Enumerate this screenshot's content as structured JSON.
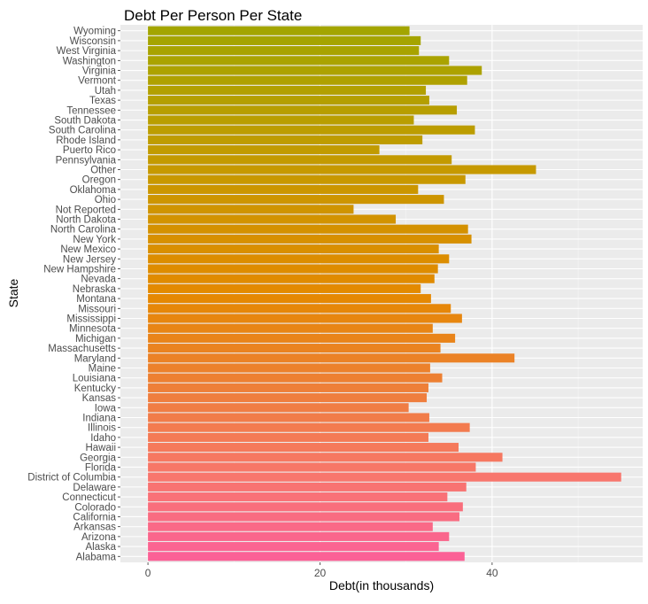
{
  "chart_data": {
    "type": "bar",
    "orientation": "horizontal",
    "title": "Debt Per Person Per State",
    "xlabel": "Debt(in thousands)",
    "ylabel": "State",
    "xlim": [
      -3.2,
      57.5
    ],
    "xticks": [
      0,
      20,
      40
    ],
    "grid": true,
    "legend": "none",
    "panel_background": "#ebebeb",
    "grid_major_color": "#ffffff",
    "color_gradient": {
      "bottom": "#f8766d",
      "middle": "#e38900",
      "top": "#a3a500",
      "bottom_pink": "#fb61d7"
    },
    "categories": [
      "Alabama",
      "Alaska",
      "Arizona",
      "Arkansas",
      "California",
      "Colorado",
      "Connecticut",
      "Delaware",
      "District of Columbia",
      "Florida",
      "Georgia",
      "Hawaii",
      "Idaho",
      "Illinois",
      "Indiana",
      "Iowa",
      "Kansas",
      "Kentucky",
      "Louisiana",
      "Maine",
      "Maryland",
      "Massachusetts",
      "Michigan",
      "Minnesota",
      "Mississippi",
      "Missouri",
      "Montana",
      "Nebraska",
      "Nevada",
      "New Hampshire",
      "New Jersey",
      "New Mexico",
      "New York",
      "North Carolina",
      "North Dakota",
      "Not Reported",
      "Ohio",
      "Oklahoma",
      "Oregon",
      "Other",
      "Pennsylvania",
      "Puerto Rico",
      "Rhode Island",
      "South Carolina",
      "South Dakota",
      "Tennessee",
      "Texas",
      "Utah",
      "Vermont",
      "Virginia",
      "Washington",
      "West Virginia",
      "Wisconsin",
      "Wyoming"
    ],
    "values": [
      36.8,
      33.8,
      35.0,
      33.1,
      36.2,
      36.6,
      34.8,
      37.0,
      55.0,
      38.1,
      41.2,
      36.1,
      32.6,
      37.4,
      32.7,
      30.3,
      32.4,
      32.6,
      34.2,
      32.8,
      42.6,
      34.0,
      35.7,
      33.1,
      36.5,
      35.2,
      32.9,
      31.7,
      33.3,
      33.7,
      35.0,
      33.8,
      37.6,
      37.2,
      28.8,
      23.9,
      34.4,
      31.4,
      36.9,
      45.1,
      35.3,
      26.9,
      31.9,
      38.0,
      30.9,
      35.9,
      32.7,
      32.3,
      37.1,
      38.8,
      35.0,
      31.5,
      31.7,
      30.4
    ]
  }
}
